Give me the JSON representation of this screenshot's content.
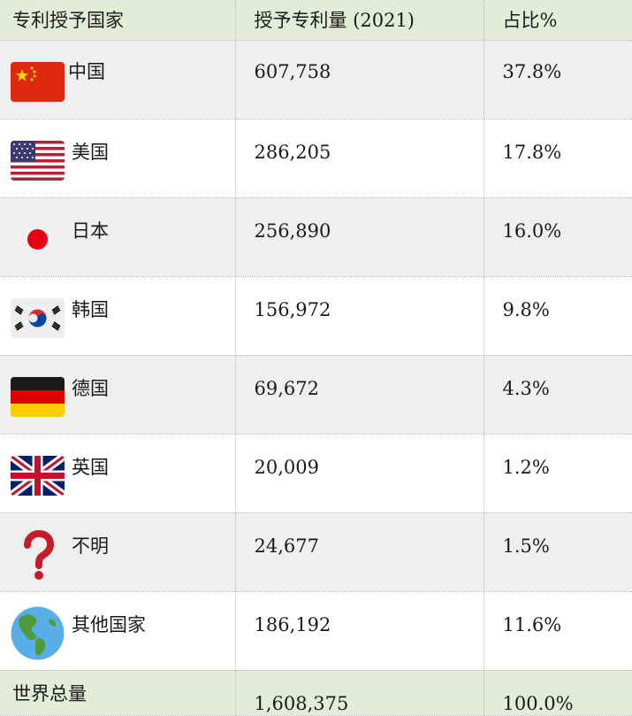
{
  "headers": {
    "country": "专利授予国家",
    "granted": "授予专利量 (2021)",
    "share": "占比%"
  },
  "rows": [
    {
      "country": "中国",
      "flag": "china-flag-icon",
      "granted": "607,758",
      "share": "37.8%"
    },
    {
      "country": "美国",
      "flag": "usa-flag-icon",
      "granted": "286,205",
      "share": "17.8%"
    },
    {
      "country": "日本",
      "flag": "japan-flag-icon",
      "granted": "256,890",
      "share": "16.0%"
    },
    {
      "country": "韩国",
      "flag": "south-korea-flag-icon",
      "granted": "156,972",
      "share": "9.8%"
    },
    {
      "country": "德国",
      "flag": "germany-flag-icon",
      "granted": "69,672",
      "share": "4.3%"
    },
    {
      "country": "英国",
      "flag": "uk-flag-icon",
      "granted": "20,009",
      "share": "1.2%"
    },
    {
      "country": "不明",
      "flag": "question-mark-icon",
      "granted": "24,677",
      "share": "1.5%"
    },
    {
      "country": "其他国家",
      "flag": "globe-icon",
      "granted": "186,192",
      "share": "11.6%"
    }
  ],
  "total": {
    "label": "世界总量",
    "granted": "1,608,375",
    "share": "100.0%"
  },
  "colors": {
    "header_bg": "#e4ecd8",
    "row_shade": "#efefef"
  }
}
